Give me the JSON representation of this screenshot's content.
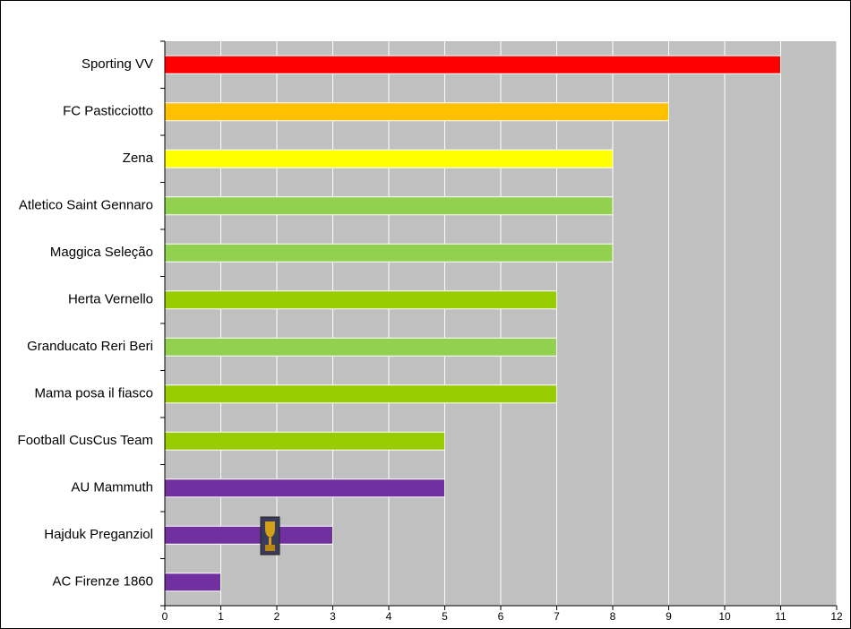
{
  "chart_data": {
    "type": "bar",
    "orientation": "horizontal",
    "categories": [
      "Sporting VV",
      "FC Pasticciotto",
      "Zena",
      "Atletico Saint Gennaro",
      "Maggica Seleção",
      "Herta Vernello",
      "Granducato Reri Beri",
      "Mama posa il fiasco",
      "Football CusCus Team",
      "AU Mammuth",
      "Hajduk Preganziol",
      "AC Firenze 1860"
    ],
    "values": [
      11,
      9,
      8,
      8,
      8,
      7,
      7,
      7,
      5,
      5,
      3,
      1
    ],
    "colors": [
      "#ff0000",
      "#ffc000",
      "#ffff00",
      "#92d050",
      "#92d050",
      "#99cc00",
      "#92d050",
      "#99cc00",
      "#99cc00",
      "#7030a0",
      "#7030a0",
      "#7030a0"
    ],
    "xlim": [
      0,
      12
    ],
    "xticks": [
      0,
      1,
      2,
      3,
      4,
      5,
      6,
      7,
      8,
      9,
      10,
      11,
      12
    ],
    "grid": true
  }
}
